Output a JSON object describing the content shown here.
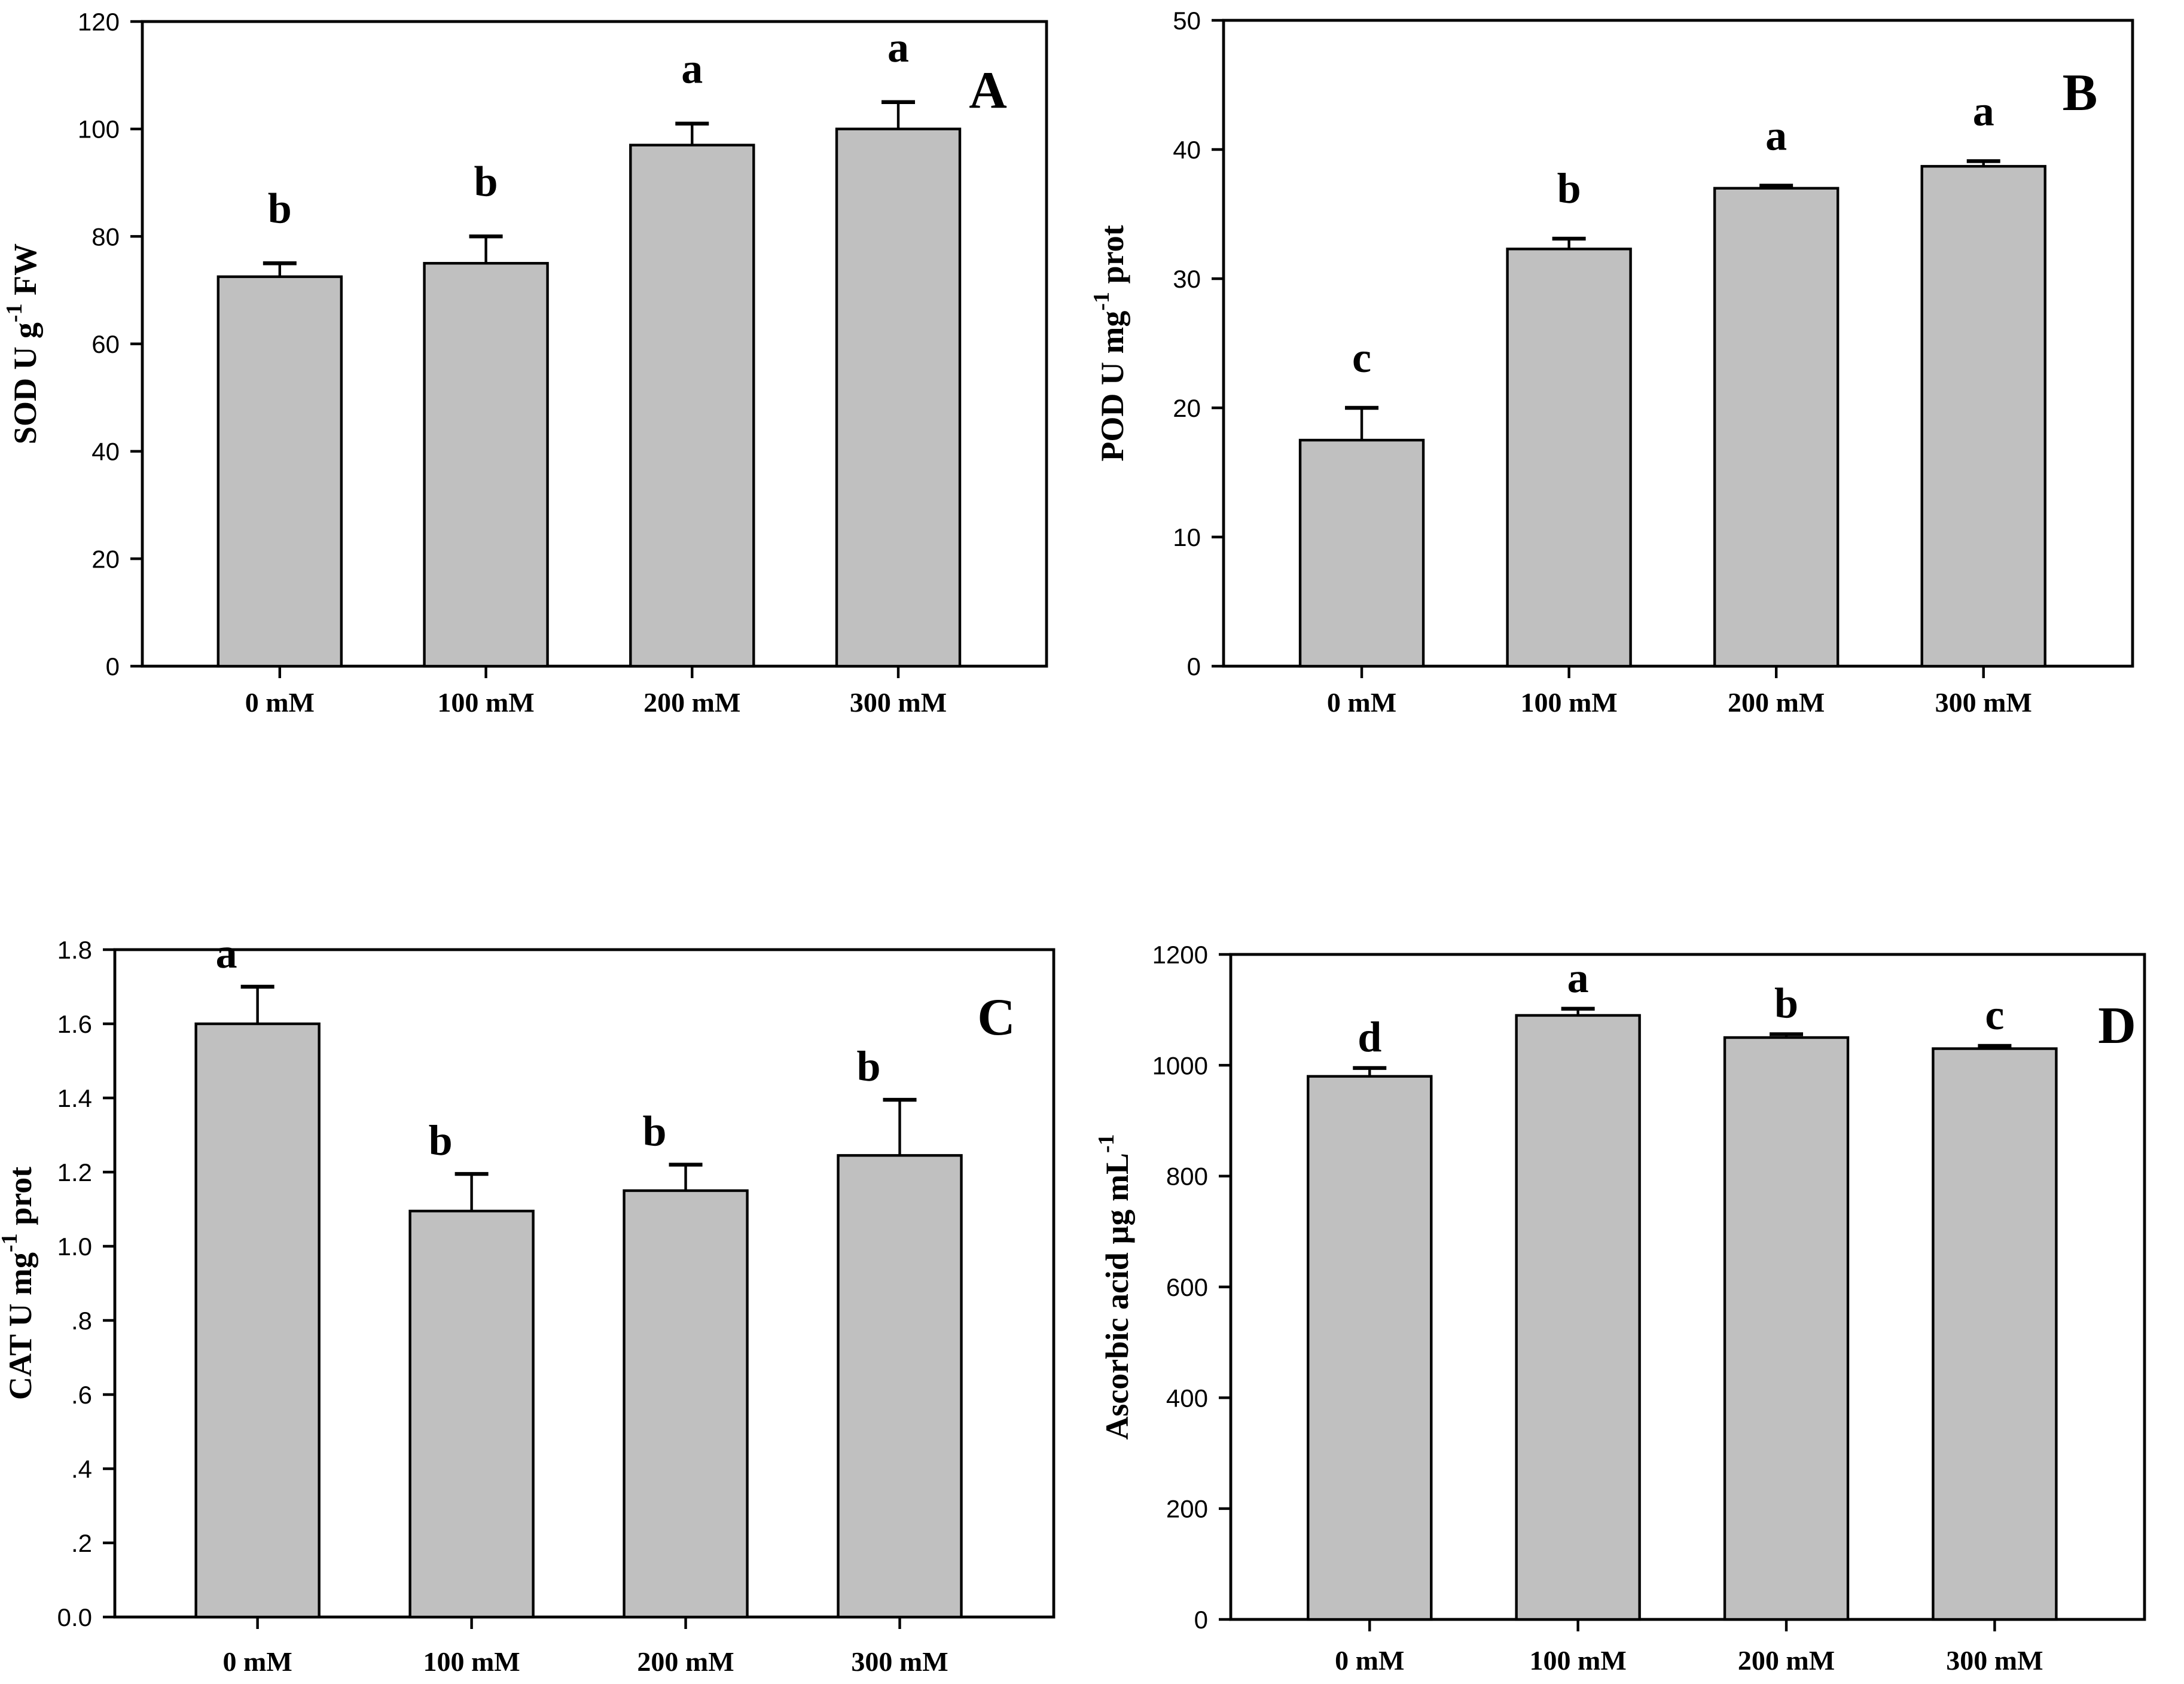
{
  "colors": {
    "background": "#ffffff",
    "bar_fill": "#c0c0c0",
    "bar_stroke": "#000000",
    "axis_color": "#000000",
    "text_color": "#000000"
  },
  "chart_data": [
    {
      "type": "bar",
      "panel_label": "A",
      "ylabel": "SOD U g⁻¹ FW",
      "ylabel_parts": {
        "pre": "SOD U g",
        "sup": "-1",
        "post": " FW"
      },
      "xlabel": "",
      "categories": [
        "0 mM",
        "100 mM",
        "200 mM",
        "300 mM"
      ],
      "values": [
        72.5,
        75,
        97,
        100
      ],
      "errors_upper": [
        2.5,
        5,
        4,
        5
      ],
      "sig_letters": [
        "b",
        "b",
        "a",
        "a"
      ],
      "ylim": [
        0,
        120
      ],
      "yticks": [
        0,
        20,
        40,
        60,
        80,
        100,
        120
      ],
      "ytick_labels": [
        "0",
        "20",
        "40",
        "60",
        "80",
        "100",
        "120"
      ],
      "error_bars": "upper",
      "grid": false,
      "legend": null
    },
    {
      "type": "bar",
      "panel_label": "B",
      "ylabel": "POD U mg⁻¹ prot",
      "ylabel_parts": {
        "pre": "POD U mg",
        "sup": "-1",
        "post": " prot"
      },
      "xlabel": "",
      "categories": [
        "0 mM",
        "100 mM",
        "200 mM",
        "300 mM"
      ],
      "values": [
        17.5,
        32.3,
        37,
        38.7
      ],
      "errors_upper": [
        2.5,
        0.8,
        0.2,
        0.4
      ],
      "sig_letters": [
        "c",
        "b",
        "a",
        "a"
      ],
      "ylim": [
        0,
        50
      ],
      "yticks": [
        0,
        10,
        20,
        30,
        40,
        50
      ],
      "ytick_labels": [
        "0",
        "10",
        "20",
        "30",
        "40",
        "50"
      ],
      "error_bars": "upper",
      "grid": false,
      "legend": null
    },
    {
      "type": "bar",
      "panel_label": "C",
      "ylabel": "CAT U mg⁻¹ prot",
      "ylabel_parts": {
        "pre": "CAT U mg",
        "sup": "-1",
        "post": " prot"
      },
      "xlabel": "",
      "categories": [
        "0 mM",
        "100 mM",
        "200 mM",
        "300 mM"
      ],
      "values": [
        1.6,
        1.095,
        1.15,
        1.245
      ],
      "errors_upper": [
        0.1,
        0.1,
        0.07,
        0.15
      ],
      "sig_letters": [
        "a",
        "b",
        "b",
        "b"
      ],
      "ylim": [
        0,
        1.8
      ],
      "yticks": [
        0,
        0.2,
        0.4,
        0.6,
        0.8,
        1.0,
        1.2,
        1.4,
        1.6,
        1.8
      ],
      "ytick_labels": [
        "0.0",
        ".2",
        ".4",
        ".6",
        ".8",
        "1.0",
        "1.2",
        "1.4",
        "1.6",
        "1.8"
      ],
      "error_bars": "upper",
      "grid": false,
      "legend": null
    },
    {
      "type": "bar",
      "panel_label": "D",
      "ylabel": "Ascorbic acid µg mL⁻¹",
      "ylabel_parts": {
        "pre": "Ascorbic acid µg mL",
        "sup": "-1",
        "post": ""
      },
      "xlabel": "",
      "categories": [
        "0 mM",
        "100 mM",
        "200 mM",
        "300 mM"
      ],
      "values": [
        980,
        1090,
        1050,
        1030
      ],
      "errors_upper": [
        15,
        12,
        6,
        5
      ],
      "sig_letters": [
        "d",
        "a",
        "b",
        "c"
      ],
      "ylim": [
        0,
        1200
      ],
      "yticks": [
        0,
        200,
        400,
        600,
        800,
        1000,
        1200
      ],
      "ytick_labels": [
        "0",
        "200",
        "400",
        "600",
        "800",
        "1000",
        "1200"
      ],
      "error_bars": "upper",
      "grid": false,
      "legend": null
    }
  ]
}
